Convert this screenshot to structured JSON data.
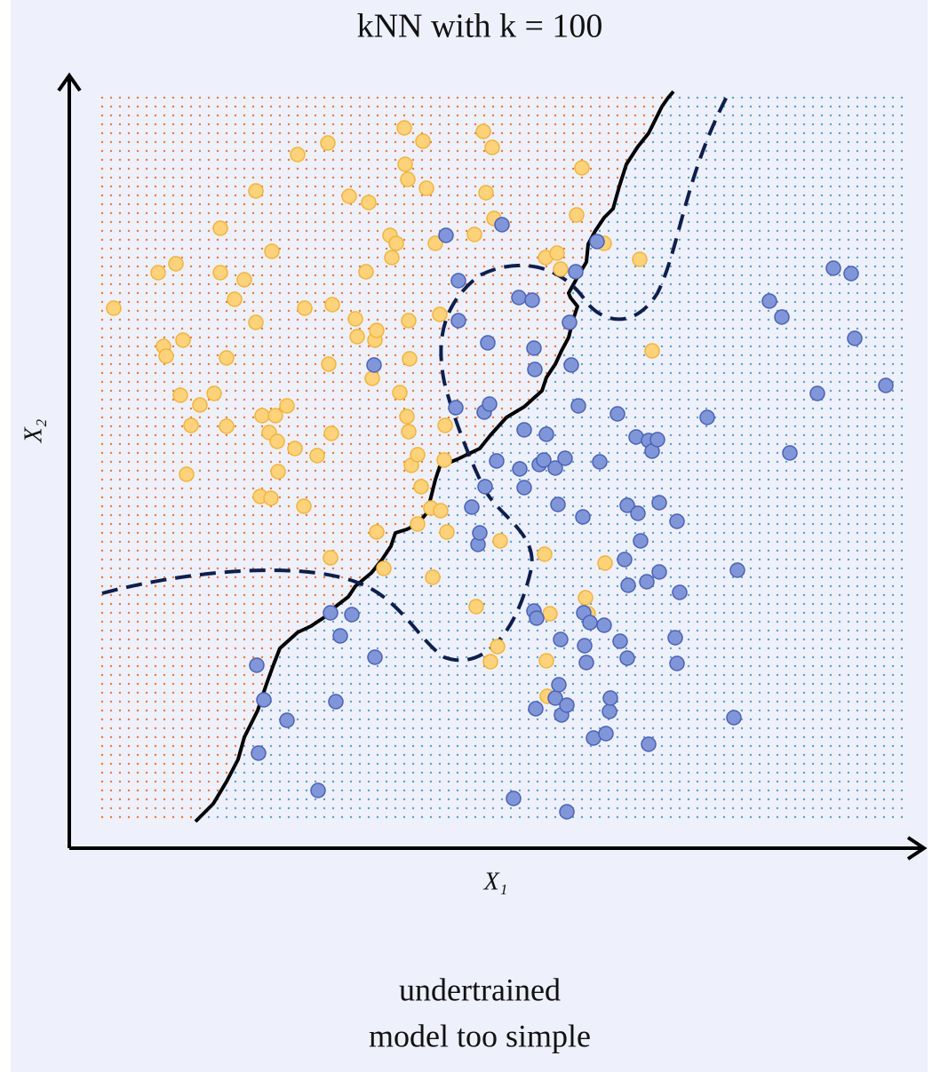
{
  "chart_data": {
    "type": "scatter",
    "title": "kNN with k = 100",
    "x_label": "X₁",
    "y_label": "X₂",
    "caption": [
      "undertrained",
      "model too simple"
    ],
    "xlim": [
      0,
      962
    ],
    "ylim": [
      0,
      870
    ],
    "series": [
      {
        "color": "#fdd27a",
        "x": [
          50,
          100,
          120,
          106,
          109,
          128,
          125,
          132,
          137,
          147,
          163,
          170,
          170,
          177,
          177,
          186,
          197,
          210,
          210,
          215,
          217,
          227,
          228,
          232,
          225,
          234,
          235,
          245,
          254,
          257,
          264,
          265,
          279,
          291,
          292,
          294,
          295,
          296,
          315,
          322,
          324,
          334,
          337,
          341,
          344,
          346,
          346,
          354,
          361,
          368,
          363,
          372,
          377,
          378,
          381,
          382,
          383,
          380,
          382,
          385,
          392,
          398,
          396,
          402,
          409,
          412,
          417,
          422,
          423,
          425,
          456,
          458,
          466,
          469,
          476,
          478,
          482,
          474,
          485,
          536,
          535,
          541,
          549,
          553,
          537,
          538,
          571,
          577,
          581,
          584,
          602,
          603,
          642,
          656,
          392,
          407,
          418
        ],
        "values": [
          608,
          648,
          658,
          565,
          554,
          572,
          510,
          421,
          476,
          499,
          512,
          698,
          648,
          552,
          475,
          618,
          640,
          740,
          592,
          396,
          487,
          394,
          672,
          487,
          468,
          458,
          424,
          498,
          450,
          781,
          385,
          608,
          442,
          794,
          545,
          327,
          467,
          612,
          734,
          596,
          576,
          649,
          727,
          529,
          572,
          583,
          356,
          315,
          690,
          681,
          665,
          513,
          811,
          770,
          753,
          594,
          551,
          486,
          469,
          431,
          443,
          796,
          407,
          743,
          305,
          681,
          601,
          437,
          476,
          356,
          691,
          272,
          807,
          738,
          789,
          709,
          227,
          210,
          346,
          665,
          331,
          264,
          670,
          652,
          211,
          171,
          713,
          766,
          282,
          264,
          681,
          321,
          663,
          560,
          365,
          383,
          380
        ]
      },
      {
        "color": "#8196d8",
        "x": [
          211,
          219,
          213,
          245,
          280,
          294,
          305,
          300,
          318,
          344,
          343,
          424,
          438,
          438,
          435,
          453,
          460,
          468,
          471,
          467,
          473,
          481,
          487,
          500,
          506,
          507,
          512,
          512,
          521,
          523,
          524,
          523,
          526,
          525,
          529,
          534,
          537,
          547,
          550,
          547,
          551,
          553,
          554,
          558,
          560,
          560,
          563,
          565,
          570,
          573,
          578,
          579,
          580,
          582,
          586,
          590,
          594,
          597,
          602,
          604,
          608,
          609,
          617,
          620,
          625,
          628,
          628,
          629,
          638,
          640,
          643,
          650,
          652,
          652,
          656,
          662,
          664,
          664,
          682,
          684,
          684,
          687,
          718,
          748,
          752,
          788,
          802,
          811,
          842,
          860,
          880,
          884,
          919,
          462
        ],
        "values": [
          206,
          167,
          107,
          144,
          65,
          265,
          239,
          165,
          263,
          215,
          544,
          690,
          639,
          594,
          496,
          384,
          342,
          407,
          569,
          491,
          500,
          436,
          702,
          56,
          620,
          427,
          406,
          471,
          617,
          563,
          539,
          267,
          259,
          157,
          432,
          437,
          466,
          428,
          387,
          169,
          184,
          235,
          150,
          439,
          161,
          41,
          592,
          544,
          649,
          498,
          373,
          265,
          228,
          209,
          254,
          124,
          683,
          435,
          251,
          129,
          154,
          169,
          489,
          233,
          325,
          386,
          214,
          296,
          463,
          377,
          346,
          300,
          459,
          117,
          447,
          460,
          389,
          311,
          237,
          208,
          368,
          288,
          485,
          147,
          313,
          616,
          598,
          445,
          512,
          653,
          647,
          574,
          521,
          355
        ]
      }
    ]
  }
}
